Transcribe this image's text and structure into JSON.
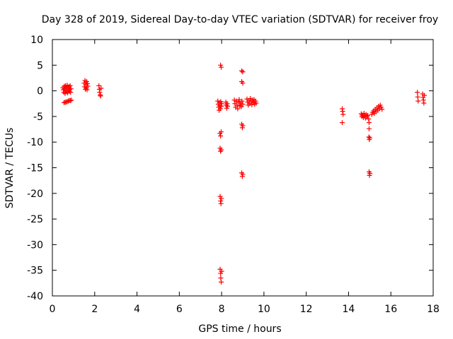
{
  "chart_data": {
    "type": "scatter",
    "title": "Day 328 of 2019, Sidereal Day-to-day VTEC variation (SDTVAR) for receiver froy",
    "xlabel": "GPS time / hours",
    "ylabel": "SDTVAR / TECUs",
    "xlim": [
      0,
      18
    ],
    "ylim": [
      -40,
      10
    ],
    "xticks": [
      0,
      2,
      4,
      6,
      8,
      10,
      12,
      14,
      16,
      18
    ],
    "yticks": [
      10,
      5,
      0,
      -5,
      -10,
      -15,
      -20,
      -25,
      -30,
      -35,
      -40
    ],
    "grid": false,
    "legend": null,
    "marker": "+",
    "color": "#ff0000",
    "series": [
      {
        "name": "SDTVAR",
        "points": [
          [
            0.5,
            0.6
          ],
          [
            0.52,
            0.2
          ],
          [
            0.54,
            -0.3
          ],
          [
            0.56,
            0.9
          ],
          [
            0.58,
            0.4
          ],
          [
            0.6,
            -0.5
          ],
          [
            0.62,
            1.0
          ],
          [
            0.64,
            0.1
          ],
          [
            0.66,
            -0.2
          ],
          [
            0.68,
            0.7
          ],
          [
            0.7,
            1.1
          ],
          [
            0.72,
            -0.4
          ],
          [
            0.74,
            0.5
          ],
          [
            0.76,
            0.0
          ],
          [
            0.78,
            0.8
          ],
          [
            0.8,
            -0.1
          ],
          [
            0.82,
            0.3
          ],
          [
            0.84,
            1.0
          ],
          [
            0.86,
            -0.3
          ],
          [
            0.88,
            0.4
          ],
          [
            0.55,
            -2.3
          ],
          [
            0.6,
            -2.2
          ],
          [
            0.65,
            -2.2
          ],
          [
            0.7,
            -2.1
          ],
          [
            0.75,
            -2.0
          ],
          [
            0.8,
            -1.9
          ],
          [
            0.85,
            -1.9
          ],
          [
            0.9,
            -1.8
          ],
          [
            1.5,
            1.5
          ],
          [
            1.52,
            0.8
          ],
          [
            1.54,
            2.0
          ],
          [
            1.56,
            0.3
          ],
          [
            1.58,
            1.2
          ],
          [
            1.6,
            0.6
          ],
          [
            1.62,
            1.8
          ],
          [
            1.64,
            0.2
          ],
          [
            1.66,
            1.4
          ],
          [
            1.68,
            0.9
          ],
          [
            2.2,
            1.0
          ],
          [
            2.22,
            0.3
          ],
          [
            2.24,
            -0.3
          ],
          [
            2.26,
            -0.8
          ],
          [
            2.28,
            -1.0
          ],
          [
            2.3,
            0.5
          ],
          [
            7.82,
            -2.0
          ],
          [
            7.84,
            -2.6
          ],
          [
            7.86,
            -3.2
          ],
          [
            7.88,
            -3.8
          ],
          [
            7.9,
            -2.3
          ],
          [
            7.92,
            -2.9
          ],
          [
            7.94,
            -3.5
          ],
          [
            7.96,
            -2.1
          ],
          [
            7.98,
            -3.0
          ],
          [
            8.0,
            -2.5
          ],
          [
            7.95,
            5.0
          ],
          [
            7.98,
            4.6
          ],
          [
            7.92,
            -8.3
          ],
          [
            7.95,
            -8.8
          ],
          [
            7.98,
            -8.0
          ],
          [
            7.93,
            -11.2
          ],
          [
            7.95,
            -11.8
          ],
          [
            7.98,
            -11.5
          ],
          [
            7.93,
            -20.6
          ],
          [
            7.95,
            -21.5
          ],
          [
            7.97,
            -22.0
          ],
          [
            7.99,
            -21.0
          ],
          [
            7.93,
            -34.8
          ],
          [
            7.95,
            -35.6
          ],
          [
            7.96,
            -36.5
          ],
          [
            7.98,
            -37.3
          ],
          [
            8.0,
            -35.2
          ],
          [
            8.2,
            -2.2
          ],
          [
            8.22,
            -2.8
          ],
          [
            8.24,
            -3.4
          ],
          [
            8.26,
            -2.5
          ],
          [
            8.28,
            -3.0
          ],
          [
            8.6,
            -1.8
          ],
          [
            8.63,
            -2.5
          ],
          [
            8.66,
            -3.2
          ],
          [
            8.7,
            -2.0
          ],
          [
            8.73,
            -2.8
          ],
          [
            8.76,
            -3.5
          ],
          [
            8.8,
            -2.2
          ],
          [
            8.83,
            -1.7
          ],
          [
            8.86,
            -2.9
          ],
          [
            8.9,
            -2.4
          ],
          [
            8.93,
            -3.1
          ],
          [
            8.96,
            -2.0
          ],
          [
            9.0,
            -2.6
          ],
          [
            8.95,
            3.9
          ],
          [
            9.0,
            3.7
          ],
          [
            8.95,
            1.8
          ],
          [
            9.0,
            1.5
          ],
          [
            8.95,
            -6.5
          ],
          [
            8.98,
            -7.2
          ],
          [
            9.0,
            -6.8
          ],
          [
            8.95,
            -16.0
          ],
          [
            8.98,
            -16.7
          ],
          [
            9.0,
            -16.3
          ],
          [
            9.2,
            -1.6
          ],
          [
            9.23,
            -2.2
          ],
          [
            9.26,
            -2.8
          ],
          [
            9.3,
            -1.9
          ],
          [
            9.33,
            -2.5
          ],
          [
            9.36,
            -1.5
          ],
          [
            9.4,
            -2.1
          ],
          [
            9.43,
            -2.7
          ],
          [
            9.46,
            -1.8
          ],
          [
            9.5,
            -2.3
          ],
          [
            9.53,
            -1.7
          ],
          [
            9.56,
            -2.6
          ],
          [
            9.6,
            -2.0
          ],
          [
            9.63,
            -2.4
          ],
          [
            13.7,
            -3.5
          ],
          [
            13.72,
            -4.0
          ],
          [
            13.74,
            -4.6
          ],
          [
            13.7,
            -6.2
          ],
          [
            14.6,
            -4.5
          ],
          [
            14.63,
            -5.0
          ],
          [
            14.66,
            -4.7
          ],
          [
            14.7,
            -5.2
          ],
          [
            14.73,
            -4.4
          ],
          [
            14.76,
            -4.9
          ],
          [
            14.8,
            -5.3
          ],
          [
            14.83,
            -4.6
          ],
          [
            14.86,
            -5.0
          ],
          [
            14.9,
            -4.8
          ],
          [
            14.95,
            -5.5
          ],
          [
            14.97,
            -6.2
          ],
          [
            14.97,
            -7.4
          ],
          [
            14.96,
            -9.0
          ],
          [
            14.98,
            -9.5
          ],
          [
            15.0,
            -9.2
          ],
          [
            14.97,
            -15.8
          ],
          [
            14.99,
            -16.5
          ],
          [
            15.01,
            -16.1
          ],
          [
            15.1,
            -4.6
          ],
          [
            15.14,
            -4.2
          ],
          [
            15.18,
            -3.9
          ],
          [
            15.22,
            -4.4
          ],
          [
            15.26,
            -3.6
          ],
          [
            15.3,
            -4.1
          ],
          [
            15.34,
            -3.3
          ],
          [
            15.38,
            -3.8
          ],
          [
            15.42,
            -3.0
          ],
          [
            15.46,
            -3.5
          ],
          [
            15.5,
            -2.8
          ],
          [
            15.54,
            -3.2
          ],
          [
            15.58,
            -3.6
          ],
          [
            17.25,
            -0.3
          ],
          [
            17.27,
            -1.2
          ],
          [
            17.29,
            -2.0
          ],
          [
            17.5,
            -0.6
          ],
          [
            17.52,
            -1.3
          ],
          [
            17.54,
            -1.8
          ],
          [
            17.56,
            -2.4
          ],
          [
            17.58,
            -0.9
          ]
        ]
      }
    ]
  }
}
